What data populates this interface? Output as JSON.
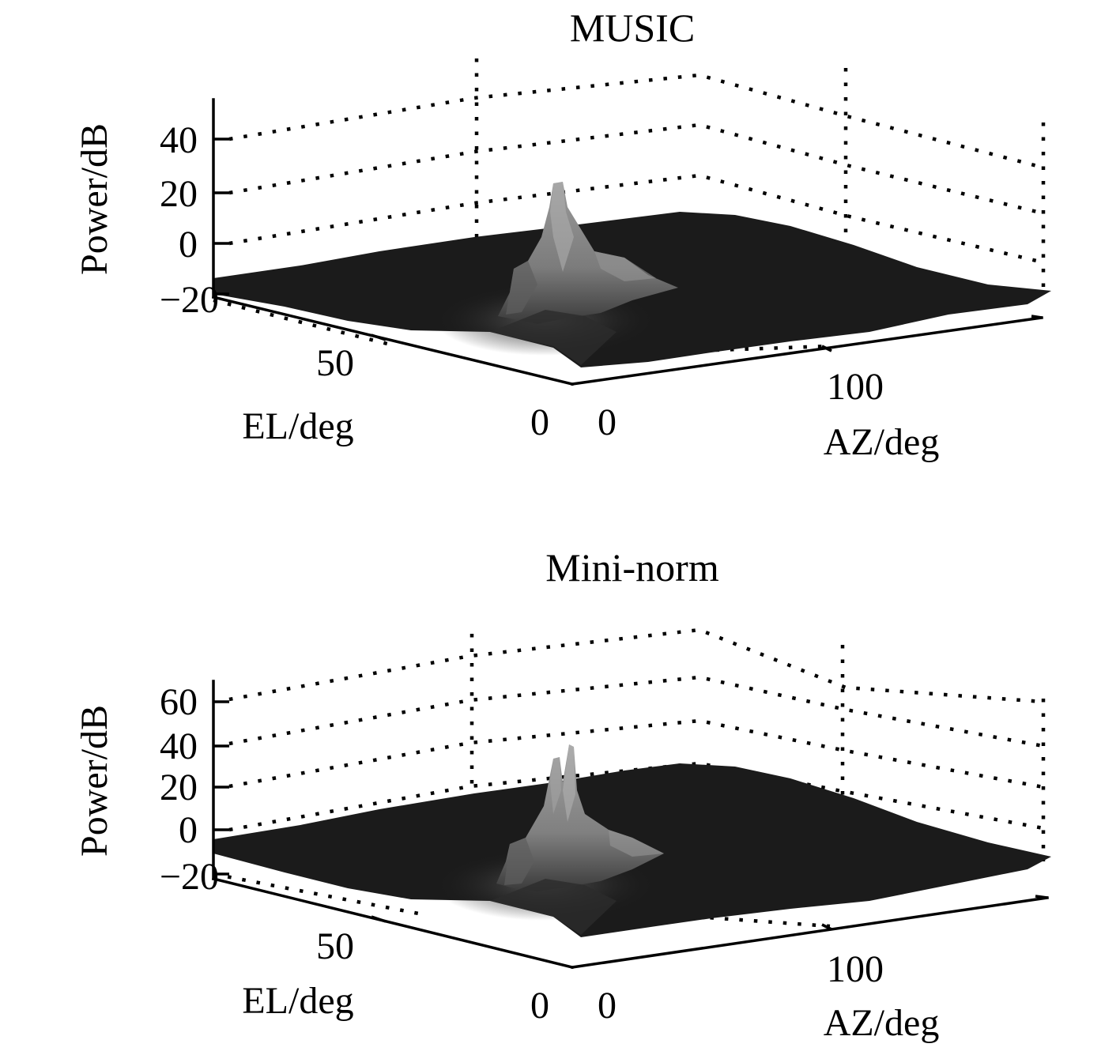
{
  "chart_data": [
    {
      "type": "surface",
      "title": "MUSIC",
      "xlabel": "EL/deg",
      "ylabel": "AZ/deg",
      "zlabel": "Power/dB",
      "x_ticks": [
        "0",
        "50"
      ],
      "y_ticks": [
        "0",
        "100"
      ],
      "z_ticks": [
        "-20",
        "0",
        "20",
        "40"
      ],
      "zlim": [
        -20,
        55
      ],
      "grid": true,
      "colormap": "gray",
      "surface_floor_db": -20,
      "peaks": [
        {
          "el_deg": 30,
          "az_deg": 40,
          "power_db": 22
        },
        {
          "el_deg": 35,
          "az_deg": 45,
          "power_db": 2
        },
        {
          "el_deg": 20,
          "az_deg": 55,
          "power_db": -8
        }
      ]
    },
    {
      "type": "surface",
      "title": "Mini-norm",
      "xlabel": "EL/deg",
      "ylabel": "AZ/deg",
      "zlabel": "Power/dB",
      "x_ticks": [
        "0",
        "50"
      ],
      "y_ticks": [
        "0",
        "100"
      ],
      "z_ticks": [
        "-20",
        "0",
        "20",
        "40",
        "60"
      ],
      "zlim": [
        -20,
        65
      ],
      "grid": true,
      "colormap": "gray",
      "surface_floor_db": -20,
      "peaks": [
        {
          "el_deg": 30,
          "az_deg": 40,
          "power_db": 42
        },
        {
          "el_deg": 34,
          "az_deg": 43,
          "power_db": 35
        },
        {
          "el_deg": 20,
          "az_deg": 55,
          "power_db": 5
        }
      ]
    }
  ]
}
